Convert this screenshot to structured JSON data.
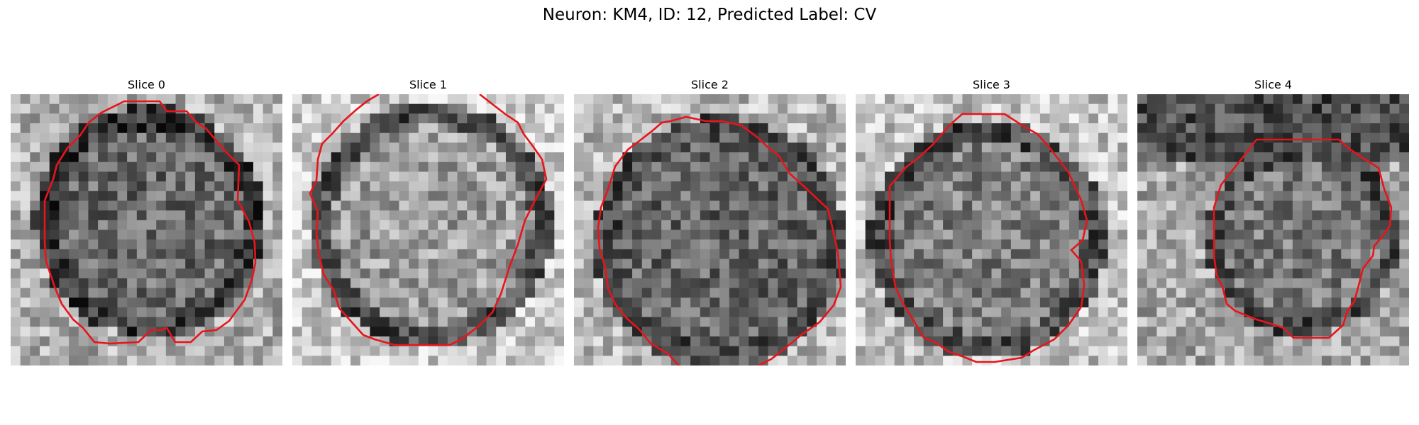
{
  "figure": {
    "title": "Neuron: KM4, ID: 12, Predicted Label: CV"
  },
  "panels": [
    {
      "title": "Slice 0",
      "contour_color": "#e8141b"
    },
    {
      "title": "Slice 1",
      "contour_color": "#e8141b"
    },
    {
      "title": "Slice 2",
      "contour_color": "#e8141b"
    },
    {
      "title": "Slice 3",
      "contour_color": "#e8141b"
    },
    {
      "title": "Slice 4",
      "contour_color": "#e8141b"
    }
  ]
}
